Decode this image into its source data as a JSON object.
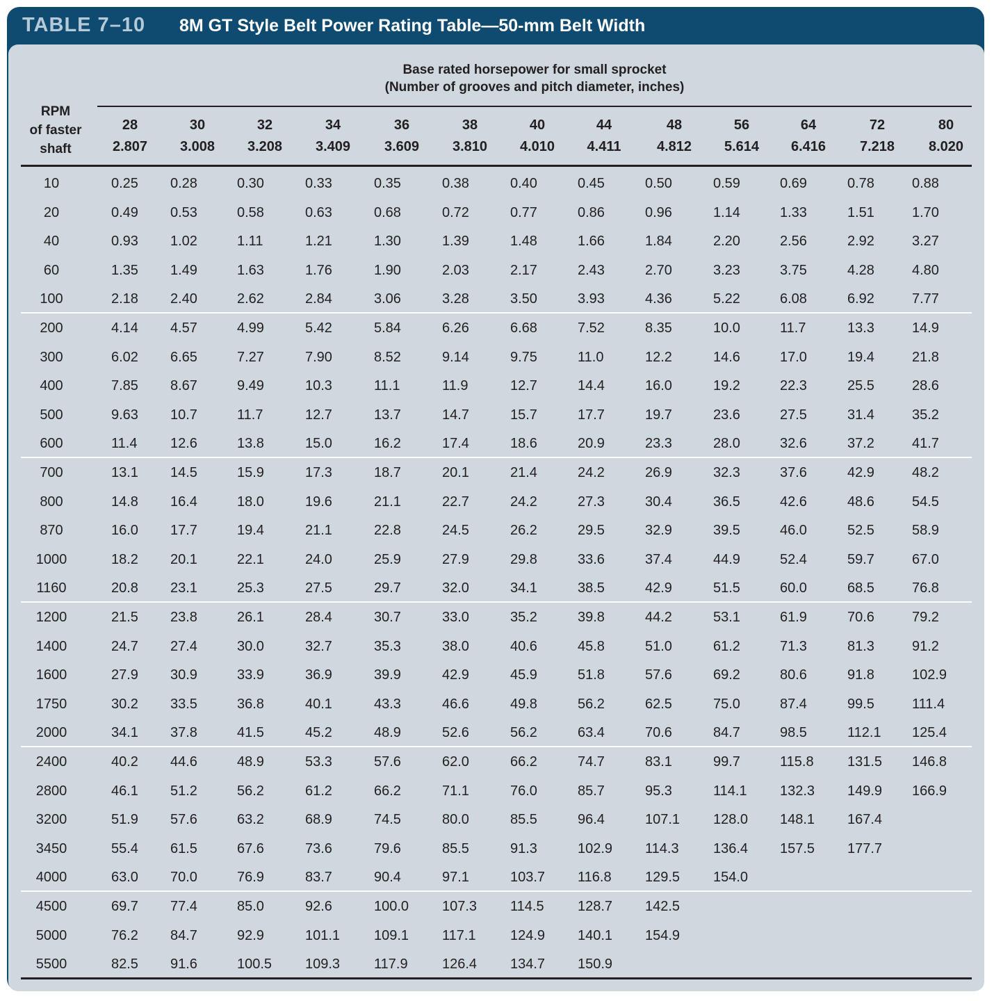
{
  "title": {
    "number": "TABLE 7–10",
    "text": "8M GT Style Belt Power Rating Table—50-mm Belt Width"
  },
  "header": {
    "group_line1": "Base rated horsepower for small sprocket",
    "group_line2": "(Number of grooves and pitch diameter, inches)",
    "rpm_line1": "RPM",
    "rpm_line2": "of faster",
    "rpm_line3": "shaft"
  },
  "columns": [
    {
      "grooves": "28",
      "diameter": "2.807"
    },
    {
      "grooves": "30",
      "diameter": "3.008"
    },
    {
      "grooves": "32",
      "diameter": "3.208"
    },
    {
      "grooves": "34",
      "diameter": "3.409"
    },
    {
      "grooves": "36",
      "diameter": "3.609"
    },
    {
      "grooves": "38",
      "diameter": "3.810"
    },
    {
      "grooves": "40",
      "diameter": "4.010"
    },
    {
      "grooves": "44",
      "diameter": "4.411"
    },
    {
      "grooves": "48",
      "diameter": "4.812"
    },
    {
      "grooves": "56",
      "diameter": "5.614"
    },
    {
      "grooves": "64",
      "diameter": "6.416"
    },
    {
      "grooves": "72",
      "diameter": "7.218"
    },
    {
      "grooves": "80",
      "diameter": "8.020"
    }
  ],
  "rows": [
    {
      "rpm": "10",
      "values": [
        "0.25",
        "0.28",
        "0.30",
        "0.33",
        "0.35",
        "0.38",
        "0.40",
        "0.45",
        "0.50",
        "0.59",
        "0.69",
        "0.78",
        "0.88"
      ]
    },
    {
      "rpm": "20",
      "values": [
        "0.49",
        "0.53",
        "0.58",
        "0.63",
        "0.68",
        "0.72",
        "0.77",
        "0.86",
        "0.96",
        "1.14",
        "1.33",
        "1.51",
        "1.70"
      ]
    },
    {
      "rpm": "40",
      "values": [
        "0.93",
        "1.02",
        "1.11",
        "1.21",
        "1.30",
        "1.39",
        "1.48",
        "1.66",
        "1.84",
        "2.20",
        "2.56",
        "2.92",
        "3.27"
      ]
    },
    {
      "rpm": "60",
      "values": [
        "1.35",
        "1.49",
        "1.63",
        "1.76",
        "1.90",
        "2.03",
        "2.17",
        "2.43",
        "2.70",
        "3.23",
        "3.75",
        "4.28",
        "4.80"
      ]
    },
    {
      "rpm": "100",
      "values": [
        "2.18",
        "2.40",
        "2.62",
        "2.84",
        "3.06",
        "3.28",
        "3.50",
        "3.93",
        "4.36",
        "5.22",
        "6.08",
        "6.92",
        "7.77"
      ]
    },
    {
      "rpm": "200",
      "values": [
        "4.14",
        "4.57",
        "4.99",
        "5.42",
        "5.84",
        "6.26",
        "6.68",
        "7.52",
        "8.35",
        "10.0",
        "11.7",
        "13.3",
        "14.9"
      ]
    },
    {
      "rpm": "300",
      "values": [
        "6.02",
        "6.65",
        "7.27",
        "7.90",
        "8.52",
        "9.14",
        "9.75",
        "11.0",
        "12.2",
        "14.6",
        "17.0",
        "19.4",
        "21.8"
      ]
    },
    {
      "rpm": "400",
      "values": [
        "7.85",
        "8.67",
        "9.49",
        "10.3",
        "11.1",
        "11.9",
        "12.7",
        "14.4",
        "16.0",
        "19.2",
        "22.3",
        "25.5",
        "28.6"
      ]
    },
    {
      "rpm": "500",
      "values": [
        "9.63",
        "10.7",
        "11.7",
        "12.7",
        "13.7",
        "14.7",
        "15.7",
        "17.7",
        "19.7",
        "23.6",
        "27.5",
        "31.4",
        "35.2"
      ]
    },
    {
      "rpm": "600",
      "values": [
        "11.4",
        "12.6",
        "13.8",
        "15.0",
        "16.2",
        "17.4",
        "18.6",
        "20.9",
        "23.3",
        "28.0",
        "32.6",
        "37.2",
        "41.7"
      ]
    },
    {
      "rpm": "700",
      "values": [
        "13.1",
        "14.5",
        "15.9",
        "17.3",
        "18.7",
        "20.1",
        "21.4",
        "24.2",
        "26.9",
        "32.3",
        "37.6",
        "42.9",
        "48.2"
      ]
    },
    {
      "rpm": "800",
      "values": [
        "14.8",
        "16.4",
        "18.0",
        "19.6",
        "21.1",
        "22.7",
        "24.2",
        "27.3",
        "30.4",
        "36.5",
        "42.6",
        "48.6",
        "54.5"
      ]
    },
    {
      "rpm": "870",
      "values": [
        "16.0",
        "17.7",
        "19.4",
        "21.1",
        "22.8",
        "24.5",
        "26.2",
        "29.5",
        "32.9",
        "39.5",
        "46.0",
        "52.5",
        "58.9"
      ]
    },
    {
      "rpm": "1000",
      "values": [
        "18.2",
        "20.1",
        "22.1",
        "24.0",
        "25.9",
        "27.9",
        "29.8",
        "33.6",
        "37.4",
        "44.9",
        "52.4",
        "59.7",
        "67.0"
      ]
    },
    {
      "rpm": "1160",
      "values": [
        "20.8",
        "23.1",
        "25.3",
        "27.5",
        "29.7",
        "32.0",
        "34.1",
        "38.5",
        "42.9",
        "51.5",
        "60.0",
        "68.5",
        "76.8"
      ]
    },
    {
      "rpm": "1200",
      "values": [
        "21.5",
        "23.8",
        "26.1",
        "28.4",
        "30.7",
        "33.0",
        "35.2",
        "39.8",
        "44.2",
        "53.1",
        "61.9",
        "70.6",
        "79.2"
      ]
    },
    {
      "rpm": "1400",
      "values": [
        "24.7",
        "27.4",
        "30.0",
        "32.7",
        "35.3",
        "38.0",
        "40.6",
        "45.8",
        "51.0",
        "61.2",
        "71.3",
        "81.3",
        "91.2"
      ]
    },
    {
      "rpm": "1600",
      "values": [
        "27.9",
        "30.9",
        "33.9",
        "36.9",
        "39.9",
        "42.9",
        "45.9",
        "51.8",
        "57.6",
        "69.2",
        "80.6",
        "91.8",
        "102.9"
      ]
    },
    {
      "rpm": "1750",
      "values": [
        "30.2",
        "33.5",
        "36.8",
        "40.1",
        "43.3",
        "46.6",
        "49.8",
        "56.2",
        "62.5",
        "75.0",
        "87.4",
        "99.5",
        "111.4"
      ]
    },
    {
      "rpm": "2000",
      "values": [
        "34.1",
        "37.8",
        "41.5",
        "45.2",
        "48.9",
        "52.6",
        "56.2",
        "63.4",
        "70.6",
        "84.7",
        "98.5",
        "112.1",
        "125.4"
      ]
    },
    {
      "rpm": "2400",
      "values": [
        "40.2",
        "44.6",
        "48.9",
        "53.3",
        "57.6",
        "62.0",
        "66.2",
        "74.7",
        "83.1",
        "99.7",
        "115.8",
        "131.5",
        "146.8"
      ]
    },
    {
      "rpm": "2800",
      "values": [
        "46.1",
        "51.2",
        "56.2",
        "61.2",
        "66.2",
        "71.1",
        "76.0",
        "85.7",
        "95.3",
        "114.1",
        "132.3",
        "149.9",
        "166.9"
      ]
    },
    {
      "rpm": "3200",
      "values": [
        "51.9",
        "57.6",
        "63.2",
        "68.9",
        "74.5",
        "80.0",
        "85.5",
        "96.4",
        "107.1",
        "128.0",
        "148.1",
        "167.4",
        ""
      ]
    },
    {
      "rpm": "3450",
      "values": [
        "55.4",
        "61.5",
        "67.6",
        "73.6",
        "79.6",
        "85.5",
        "91.3",
        "102.9",
        "114.3",
        "136.4",
        "157.5",
        "177.7",
        ""
      ]
    },
    {
      "rpm": "4000",
      "values": [
        "63.0",
        "70.0",
        "76.9",
        "83.7",
        "90.4",
        "97.1",
        "103.7",
        "116.8",
        "129.5",
        "154.0",
        "",
        "",
        ""
      ]
    },
    {
      "rpm": "4500",
      "values": [
        "69.7",
        "77.4",
        "85.0",
        "92.6",
        "100.0",
        "107.3",
        "114.5",
        "128.7",
        "142.5",
        "",
        "",
        "",
        ""
      ]
    },
    {
      "rpm": "5000",
      "values": [
        "76.2",
        "84.7",
        "92.9",
        "101.1",
        "109.1",
        "117.1",
        "124.9",
        "140.1",
        "154.9",
        "",
        "",
        "",
        ""
      ]
    },
    {
      "rpm": "5500",
      "values": [
        "82.5",
        "91.6",
        "100.5",
        "109.3",
        "117.9",
        "126.4",
        "134.7",
        "150.9",
        "",
        "",
        "",
        "",
        ""
      ]
    }
  ]
}
